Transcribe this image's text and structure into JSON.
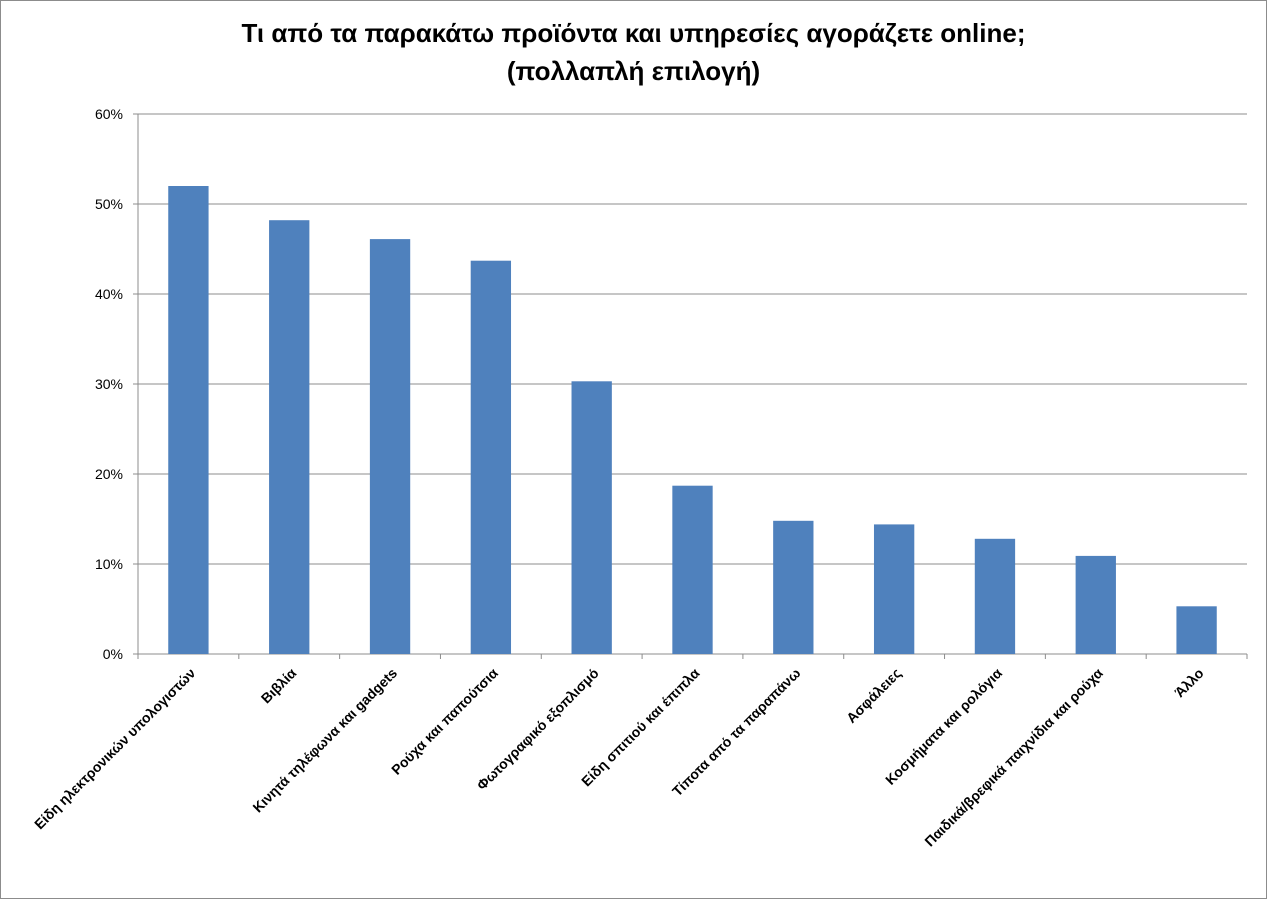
{
  "chart_data": {
    "type": "bar",
    "title_line1": "Τι από τα παρακάτω προϊόντα και υπηρεσίες αγοράζετε online;",
    "title_line2": "(πολλαπλή επιλογή)",
    "xlabel": "",
    "ylabel": "",
    "ylim": [
      0,
      60
    ],
    "yticks": [
      "0%",
      "10%",
      "20%",
      "30%",
      "40%",
      "50%",
      "60%"
    ],
    "grid": true,
    "legend": "none",
    "bar_color": "#4f81bd",
    "categories": [
      "Είδη ηλεκτρονικών υπολογιστών",
      "Βιβλία",
      "Κινητά τηλέφωνα και gadgets",
      "Ρούχα και παπούτσια",
      "Φωτογραφικό εξοπλισμό",
      "Είδη σπιτιού και έπιπλα",
      "Τίποτα από τα παραπάνω",
      "Ασφάλειες",
      "Κοσμήματα και ρολόγια",
      "Παιδικά/βρεφικά παιχνίδια και ρούχα",
      "Άλλο"
    ],
    "values": [
      52.0,
      48.2,
      46.1,
      43.7,
      30.3,
      18.7,
      14.8,
      14.4,
      12.8,
      10.9,
      5.3
    ]
  }
}
